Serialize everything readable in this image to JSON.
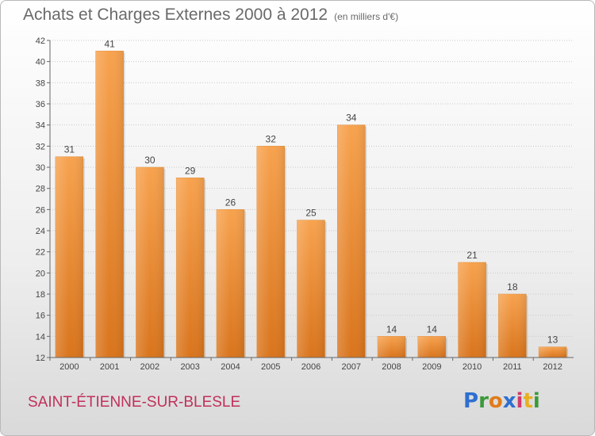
{
  "header": {
    "title": "Achats et Charges Externes 2000 à 2012",
    "subtitle": "(en milliers d'€)"
  },
  "footer": {
    "commune": "SAINT-ÉTIENNE-SUR-BLESLE",
    "logo": [
      "P",
      "r",
      "o",
      "x",
      "i",
      "t",
      "i"
    ],
    "logo_colors": [
      "#2e6fd0",
      "#3a9a3a",
      "#e07b1a",
      "#2e6fd0",
      "#d03a6a",
      "#e8b020",
      "#3a9a3a"
    ]
  },
  "chart_data": {
    "type": "bar",
    "title": "Achats et Charges Externes 2000 à 2012",
    "subtitle": "(en milliers d'€)",
    "categories": [
      "2000",
      "2001",
      "2002",
      "2003",
      "2004",
      "2005",
      "2006",
      "2007",
      "2008",
      "2009",
      "2010",
      "2011",
      "2012"
    ],
    "values": [
      31,
      41,
      30,
      29,
      26,
      32,
      25,
      34,
      14,
      14,
      21,
      18,
      13
    ],
    "ylim": [
      12,
      42
    ],
    "yticks": [
      12,
      14,
      16,
      18,
      20,
      22,
      24,
      26,
      28,
      30,
      32,
      34,
      36,
      38,
      40,
      42
    ],
    "grid": true,
    "bar_color": "#f0922e"
  }
}
